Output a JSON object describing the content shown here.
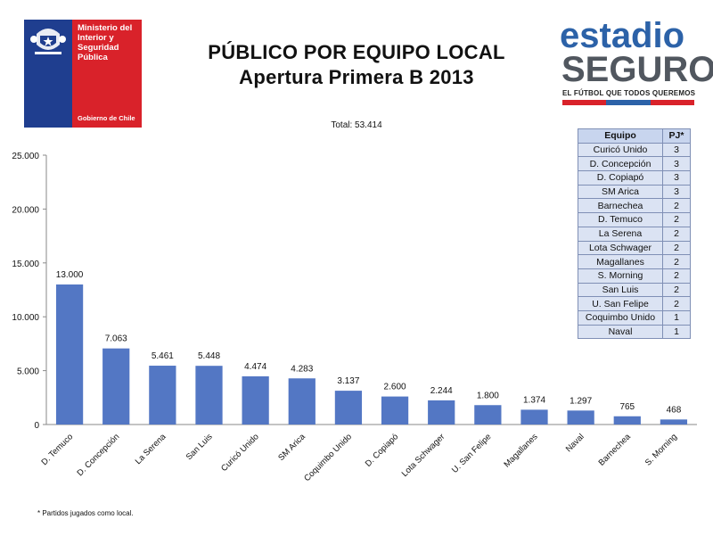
{
  "header": {
    "ministry_name": "Ministerio del\nInterior y\nSeguridad\nPública",
    "gov_name": "Gobierno de Chile",
    "title": "PÚBLICO POR EQUIPO LOCAL",
    "subtitle": "Apertura Primera B 2013",
    "total_label": "Total:  53.414"
  },
  "brand": {
    "line1": "estadio",
    "line2": "SEGURO",
    "tagline": "EL FÚTBOL QUE TODOS QUEREMOS",
    "bar_colors": [
      "#d9222a",
      "#2c62a8",
      "#d9222a"
    ]
  },
  "colors": {
    "bar": "#5377c4",
    "axis": "#8a8a8a",
    "ministry_blue": "#1f3e8f",
    "ministry_red": "#d9222a"
  },
  "table": {
    "headers": [
      "Equipo",
      "PJ*"
    ],
    "rows": [
      [
        "Curicó Unido",
        "3"
      ],
      [
        "D. Concepción",
        "3"
      ],
      [
        "D. Copiapó",
        "3"
      ],
      [
        "SM Arica",
        "3"
      ],
      [
        "Barnechea",
        "2"
      ],
      [
        "D. Temuco",
        "2"
      ],
      [
        "La Serena",
        "2"
      ],
      [
        "Lota Schwager",
        "2"
      ],
      [
        "Magallanes",
        "2"
      ],
      [
        "S. Morning",
        "2"
      ],
      [
        "San Luis",
        "2"
      ],
      [
        "U. San Felipe",
        "2"
      ],
      [
        "Coquimbo Unido",
        "1"
      ],
      [
        "Naval",
        "1"
      ]
    ]
  },
  "footnote": "* Partidos jugados como local.",
  "chart_data": {
    "type": "bar",
    "categories": [
      "D. Temuco",
      "D. Concepción",
      "La Serena",
      "San Luis",
      "Curicó Unido",
      "SM Arica",
      "Coquimbo Unido",
      "D. Copiapó",
      "Lota Schwager",
      "U. San Felipe",
      "Magallanes",
      "Naval",
      "Barnechea",
      "S. Morning"
    ],
    "values": [
      13000,
      7063,
      5461,
      5448,
      4474,
      4283,
      3137,
      2600,
      2244,
      1800,
      1374,
      1297,
      765,
      468
    ],
    "value_labels": [
      "13.000",
      "7.063",
      "5.461",
      "5.448",
      "4.474",
      "4.283",
      "3.137",
      "2.600",
      "2.244",
      "1.800",
      "1.374",
      "1.297",
      "765",
      "468"
    ],
    "y_ticks": [
      0,
      5000,
      10000,
      15000,
      20000,
      25000
    ],
    "y_tick_labels": [
      "0",
      "5.000",
      "10.000",
      "15.000",
      "20.000",
      "25.000"
    ],
    "ylim": [
      0,
      25000
    ],
    "title": "",
    "xlabel": "",
    "ylabel": "",
    "grid": false
  }
}
